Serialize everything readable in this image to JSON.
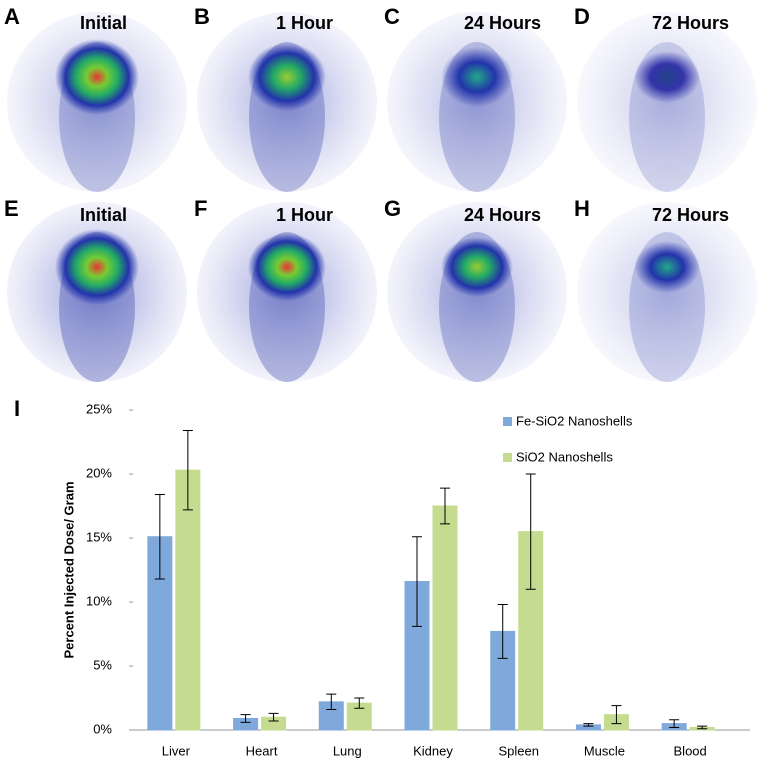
{
  "panels": [
    {
      "letter": "A",
      "label": "Initial"
    },
    {
      "letter": "B",
      "label": "1 Hour"
    },
    {
      "letter": "C",
      "label": "24 Hours"
    },
    {
      "letter": "D",
      "label": "72 Hours"
    },
    {
      "letter": "E",
      "label": "Initial"
    },
    {
      "letter": "F",
      "label": "1 Hour"
    },
    {
      "letter": "G",
      "label": "24 Hours"
    },
    {
      "letter": "H",
      "label": "72 Hours"
    }
  ],
  "chart_data": {
    "type": "bar",
    "panel_letter": "I",
    "ylabel": "Percent Injected Dose/ Gram",
    "categories": [
      "Liver",
      "Heart",
      "Lung",
      "Kidney",
      "Spleen",
      "Muscle",
      "Blood"
    ],
    "series": [
      {
        "name": "Fe-SiO2 Nanoshells",
        "color": "#7fa9da",
        "values": [
          15.1,
          0.9,
          2.2,
          11.6,
          7.7,
          0.4,
          0.5
        ],
        "errors": [
          3.3,
          0.3,
          0.6,
          3.5,
          2.1,
          0.1,
          0.3
        ]
      },
      {
        "name": "SiO2 Nanoshells",
        "color": "#c5dc90",
        "values": [
          20.3,
          1.0,
          2.1,
          17.5,
          15.5,
          1.2,
          0.2
        ],
        "errors": [
          3.1,
          0.3,
          0.4,
          1.4,
          4.5,
          0.7,
          0.1
        ]
      }
    ],
    "ylim": [
      0,
      25
    ],
    "yticks": [
      {
        "value": 0,
        "label": "0%"
      },
      {
        "value": 5,
        "label": "5%"
      },
      {
        "value": 10,
        "label": "10%"
      },
      {
        "value": 15,
        "label": "15%"
      },
      {
        "value": 20,
        "label": "20%"
      },
      {
        "value": 25,
        "label": "25%"
      }
    ]
  }
}
